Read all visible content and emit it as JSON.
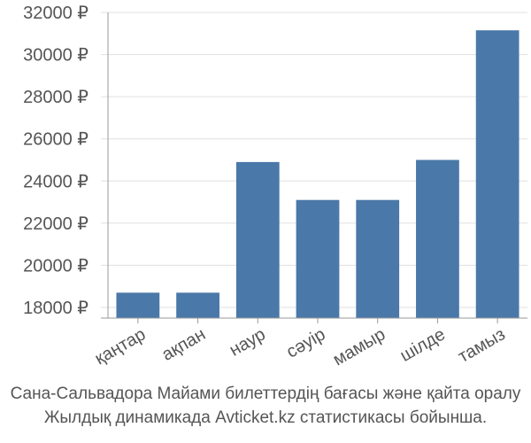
{
  "chart_data": {
    "type": "bar",
    "categories": [
      "қаңтар",
      "ақпан",
      "наур",
      "сәуір",
      "мамыр",
      "шілде",
      "тамыз"
    ],
    "values": [
      18700,
      18700,
      24900,
      23100,
      23100,
      25000,
      31150
    ],
    "y_ticks": [
      18000,
      20000,
      22000,
      24000,
      26000,
      28000,
      30000,
      32000
    ],
    "y_tick_suffix": " ₽",
    "ylim": [
      17500,
      32000
    ],
    "grid": true,
    "bar_color": "#4a78a9",
    "grid_color": "#e0e0e0",
    "axis_color": "#999999"
  },
  "caption": {
    "line1": "Сана-Сальвадора Майами билеттердің бағасы және қайта оралу",
    "line2": "Жылдық динамикада Avticket.kz статистикасы бойынша."
  }
}
